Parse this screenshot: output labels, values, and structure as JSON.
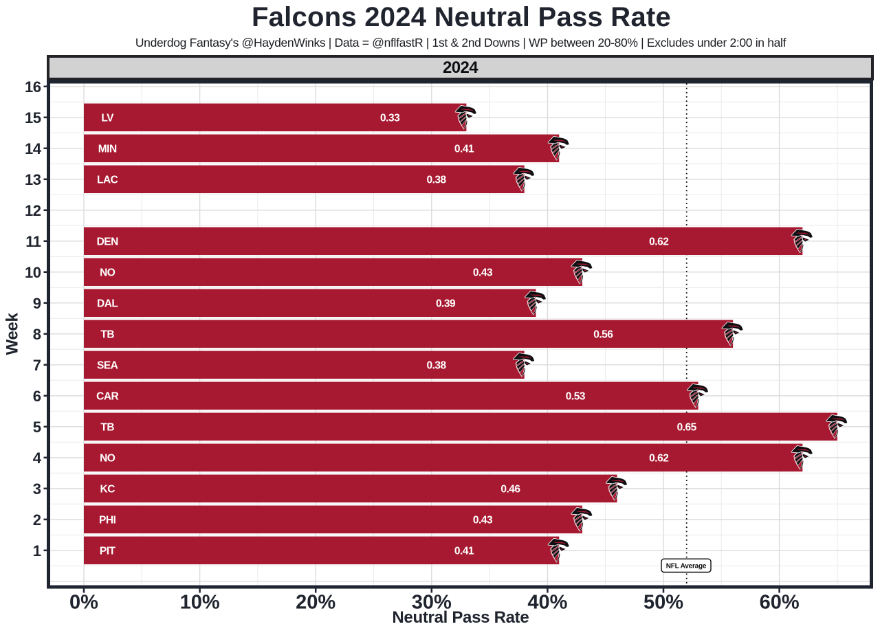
{
  "title": "Falcons 2024 Neutral Pass Rate",
  "subtitle": "Underdog Fantasy's @HaydenWinks | Data = @nflfastR | 1st & 2nd Downs | WP between 20-80% | Excludes under 2:00 in half",
  "facet_label": "2024",
  "chart_data": {
    "type": "bar",
    "orientation": "horizontal",
    "title": "Falcons 2024 Neutral Pass Rate",
    "xlabel": "Neutral Pass Rate",
    "ylabel": "Week",
    "x_tick_labels": [
      "0%",
      "10%",
      "20%",
      "30%",
      "40%",
      "50%",
      "60%"
    ],
    "x_tick_values": [
      0,
      10,
      20,
      30,
      40,
      50,
      60
    ],
    "x_minor_step": 5,
    "xlim_pct": [
      -2.9,
      67.8
    ],
    "y_tick_values": [
      1,
      2,
      3,
      4,
      5,
      6,
      7,
      8,
      9,
      10,
      11,
      12,
      13,
      14,
      15,
      16
    ],
    "ylim": [
      -0.13,
      16.1
    ],
    "grid": true,
    "legend": false,
    "bars": [
      {
        "week": 15,
        "opponent": "LV",
        "value": 0.33
      },
      {
        "week": 14,
        "opponent": "MIN",
        "value": 0.41
      },
      {
        "week": 13,
        "opponent": "LAC",
        "value": 0.38
      },
      {
        "week": 11,
        "opponent": "DEN",
        "value": 0.62
      },
      {
        "week": 10,
        "opponent": "NO",
        "value": 0.43
      },
      {
        "week": 9,
        "opponent": "DAL",
        "value": 0.39
      },
      {
        "week": 8,
        "opponent": "TB",
        "value": 0.56
      },
      {
        "week": 7,
        "opponent": "SEA",
        "value": 0.38
      },
      {
        "week": 6,
        "opponent": "CAR",
        "value": 0.53
      },
      {
        "week": 5,
        "opponent": "TB",
        "value": 0.65
      },
      {
        "week": 4,
        "opponent": "NO",
        "value": 0.62
      },
      {
        "week": 3,
        "opponent": "KC",
        "value": 0.46
      },
      {
        "week": 2,
        "opponent": "PHI",
        "value": 0.43
      },
      {
        "week": 1,
        "opponent": "PIT",
        "value": 0.41
      }
    ],
    "value_label_fraction": 0.8,
    "reference_line": {
      "value": 0.52,
      "label": "NFL Average"
    },
    "colors": {
      "bar": "#A71930",
      "bar_label": "#FFFFFF",
      "axis_text": "#20242E",
      "panel_border": "#1E2430",
      "strip_fill": "#D2D2D2",
      "strip_border": "#232327",
      "grid_major": "#DBDBDB",
      "grid_minor": "#EAEAEA",
      "reference_line": "#0B0B0B",
      "logo_black": "#0D0F12",
      "logo_red": "#A71930"
    }
  }
}
